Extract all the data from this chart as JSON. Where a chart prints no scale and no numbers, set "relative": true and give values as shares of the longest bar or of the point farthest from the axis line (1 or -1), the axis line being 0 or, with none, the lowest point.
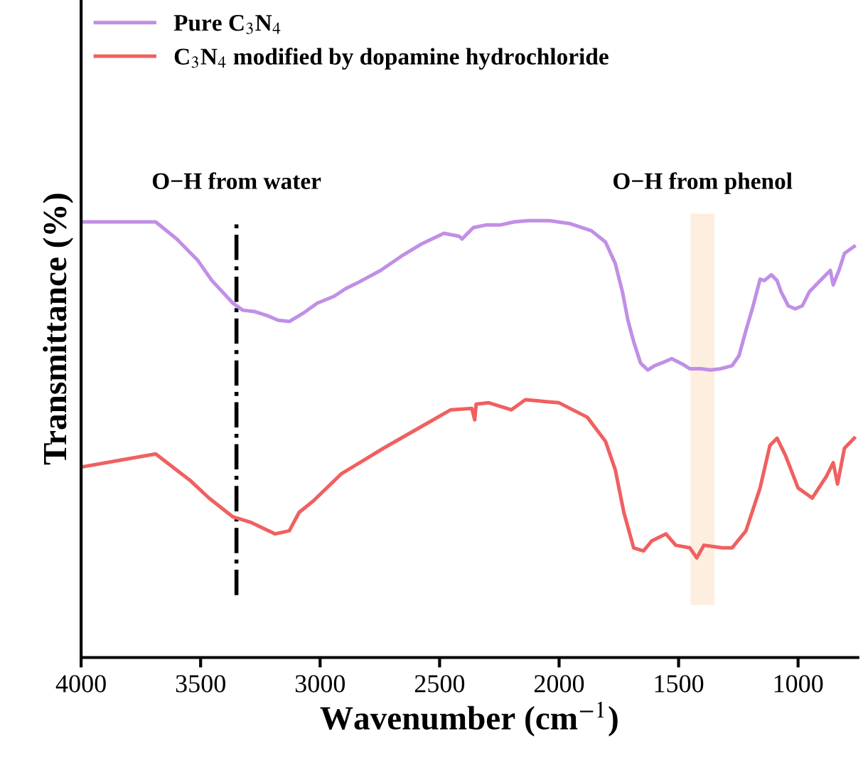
{
  "chart_data": {
    "type": "line",
    "relative": true,
    "xlabel": "Wavenumber (cm$^{−1}$)",
    "ylabel": "Transmittance (%)",
    "xlim": [
      4000,
      750
    ],
    "xticks": [
      4000,
      3500,
      3000,
      2500,
      2000,
      1500,
      1000
    ],
    "grid": false,
    "legend": "top left",
    "tick_labels": "x",
    "series": [
      {
        "name": "Pure C$_{3}$N$_{4}$",
        "color": "#c08fe6",
        "x": [
          4000,
          3688,
          3600,
          3512,
          3453,
          3365,
          3324,
          3276,
          3218,
          3176,
          3129,
          3071,
          3012,
          2941,
          2894,
          2835,
          2747,
          2659,
          2571,
          2482,
          2418,
          2406,
          2359,
          2306,
          2247,
          2188,
          2129,
          2041,
          1953,
          1865,
          1806,
          1765,
          1735,
          1712,
          1688,
          1659,
          1629,
          1600,
          1571,
          1529,
          1482,
          1453,
          1406,
          1365,
          1324,
          1276,
          1247,
          1218,
          1188,
          1159,
          1141,
          1112,
          1088,
          1071,
          1041,
          1012,
          982,
          953,
          894,
          865,
          853,
          829,
          806,
          765
        ],
        "values": [
          0.997,
          0.997,
          0.958,
          0.909,
          0.863,
          0.811,
          0.795,
          0.792,
          0.782,
          0.772,
          0.769,
          0.788,
          0.811,
          0.827,
          0.844,
          0.86,
          0.886,
          0.919,
          0.948,
          0.971,
          0.964,
          0.958,
          0.984,
          0.99,
          0.99,
          0.997,
          1,
          1,
          0.993,
          0.977,
          0.951,
          0.902,
          0.837,
          0.772,
          0.723,
          0.674,
          0.658,
          0.668,
          0.674,
          0.684,
          0.671,
          0.661,
          0.661,
          0.658,
          0.661,
          0.668,
          0.691,
          0.749,
          0.805,
          0.866,
          0.863,
          0.876,
          0.863,
          0.837,
          0.805,
          0.798,
          0.805,
          0.837,
          0.87,
          0.886,
          0.853,
          0.886,
          0.925,
          0.941
        ]
      },
      {
        "name": "C$_{3}$N$_{4}$ modified by dopamine hydrochloride",
        "color": "#f06060",
        "x": [
          4000,
          3688,
          3541,
          3465,
          3365,
          3288,
          3188,
          3129,
          3088,
          3029,
          2912,
          2735,
          2559,
          2453,
          2365,
          2353,
          2347,
          2294,
          2200,
          2141,
          2000,
          1882,
          1806,
          1765,
          1729,
          1688,
          1647,
          1612,
          1553,
          1512,
          1453,
          1424,
          1394,
          1318,
          1276,
          1218,
          1159,
          1118,
          1088,
          1053,
          1000,
          941,
          882,
          853,
          835,
          806,
          765
        ],
        "values": [
          0.436,
          0.466,
          0.404,
          0.365,
          0.322,
          0.309,
          0.283,
          0.29,
          0.332,
          0.358,
          0.42,
          0.479,
          0.534,
          0.567,
          0.57,
          0.544,
          0.58,
          0.583,
          0.567,
          0.59,
          0.583,
          0.55,
          0.495,
          0.43,
          0.332,
          0.251,
          0.244,
          0.267,
          0.283,
          0.257,
          0.251,
          0.228,
          0.257,
          0.251,
          0.251,
          0.29,
          0.388,
          0.485,
          0.502,
          0.463,
          0.388,
          0.365,
          0.414,
          0.446,
          0.397,
          0.479,
          0.502
        ]
      }
    ],
    "ref_lines": [
      {
        "axis": "x",
        "value": 3350,
        "label": "O−H from water",
        "color": "#000000",
        "line_style": "dashdot"
      }
    ],
    "bands": [
      {
        "axis": "x",
        "from": 1450,
        "to": 1350,
        "label": "O−H from phenol",
        "color": "#fdeee0"
      }
    ]
  }
}
